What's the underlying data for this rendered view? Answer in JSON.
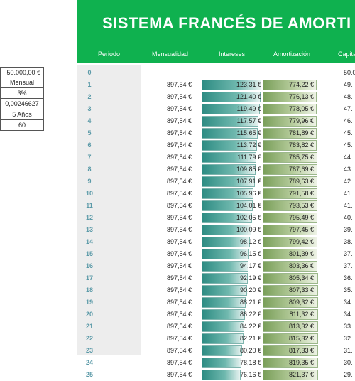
{
  "params": [
    "50.000,00 €",
    "Mensual",
    "3%",
    "0,00246627",
    "5 Años",
    "60"
  ],
  "title": "SISTEMA FRANCÉS DE AMORTI",
  "headers": {
    "periodo": "Periodo",
    "mensualidad": "Mensualidad",
    "intereses": "Intereses",
    "amortizacion": "Amortización",
    "capital": "Capita"
  },
  "rows": [
    {
      "p": "0",
      "m": "",
      "i": "",
      "a": "",
      "c": "50.0",
      "fi": 0,
      "fa": 0
    },
    {
      "p": "1",
      "m": "897,54 €",
      "i": "123,31 €",
      "a": "774,22 €",
      "c": "49.",
      "fi": 1.0,
      "fa": 0.0
    },
    {
      "p": "2",
      "m": "897,54 €",
      "i": "121,40 €",
      "a": "776,13 €",
      "c": "48.",
      "fi": 0.984,
      "fa": 0.016
    },
    {
      "p": "3",
      "m": "897,54 €",
      "i": "119,49 €",
      "a": "778,05 €",
      "c": "47.",
      "fi": 0.969,
      "fa": 0.031
    },
    {
      "p": "4",
      "m": "897,54 €",
      "i": "117,57 €",
      "a": "779,96 €",
      "c": "46.",
      "fi": 0.953,
      "fa": 0.047
    },
    {
      "p": "5",
      "m": "897,54 €",
      "i": "115,65 €",
      "a": "781,89 €",
      "c": "45.",
      "fi": 0.938,
      "fa": 0.062
    },
    {
      "p": "6",
      "m": "897,54 €",
      "i": "113,72 €",
      "a": "783,82 €",
      "c": "45.",
      "fi": 0.922,
      "fa": 0.078
    },
    {
      "p": "7",
      "m": "897,54 €",
      "i": "111,79 €",
      "a": "785,75 €",
      "c": "44.",
      "fi": 0.907,
      "fa": 0.093
    },
    {
      "p": "8",
      "m": "897,54 €",
      "i": "109,85 €",
      "a": "787,69 €",
      "c": "43.",
      "fi": 0.891,
      "fa": 0.109
    },
    {
      "p": "9",
      "m": "897,54 €",
      "i": "107,91 €",
      "a": "789,63 €",
      "c": "42.",
      "fi": 0.875,
      "fa": 0.125
    },
    {
      "p": "10",
      "m": "897,54 €",
      "i": "105,96 €",
      "a": "791,58 €",
      "c": "41.",
      "fi": 0.859,
      "fa": 0.141
    },
    {
      "p": "11",
      "m": "897,54 €",
      "i": "104,01 €",
      "a": "793,53 €",
      "c": "41.",
      "fi": 0.843,
      "fa": 0.157
    },
    {
      "p": "12",
      "m": "897,54 €",
      "i": "102,05 €",
      "a": "795,49 €",
      "c": "40.",
      "fi": 0.828,
      "fa": 0.172
    },
    {
      "p": "13",
      "m": "897,54 €",
      "i": "100,09 €",
      "a": "797,45 €",
      "c": "39.",
      "fi": 0.812,
      "fa": 0.188
    },
    {
      "p": "14",
      "m": "897,54 €",
      "i": "98,12 €",
      "a": "799,42 €",
      "c": "38.",
      "fi": 0.796,
      "fa": 0.204
    },
    {
      "p": "15",
      "m": "897,54 €",
      "i": "96,15 €",
      "a": "801,39 €",
      "c": "37.",
      "fi": 0.78,
      "fa": 0.22
    },
    {
      "p": "16",
      "m": "897,54 €",
      "i": "94,17 €",
      "a": "803,36 €",
      "c": "37.",
      "fi": 0.764,
      "fa": 0.236
    },
    {
      "p": "17",
      "m": "897,54 €",
      "i": "92,19 €",
      "a": "805,34 €",
      "c": "36.",
      "fi": 0.748,
      "fa": 0.252
    },
    {
      "p": "18",
      "m": "897,54 €",
      "i": "90,20 €",
      "a": "807,33 €",
      "c": "35.",
      "fi": 0.731,
      "fa": 0.269
    },
    {
      "p": "19",
      "m": "897,54 €",
      "i": "88,21 €",
      "a": "809,32 €",
      "c": "34.",
      "fi": 0.715,
      "fa": 0.285
    },
    {
      "p": "20",
      "m": "897,54 €",
      "i": "86,22 €",
      "a": "811,32 €",
      "c": "34.",
      "fi": 0.699,
      "fa": 0.301
    },
    {
      "p": "21",
      "m": "897,54 €",
      "i": "84,22 €",
      "a": "813,32 €",
      "c": "33.",
      "fi": 0.683,
      "fa": 0.317
    },
    {
      "p": "22",
      "m": "897,54 €",
      "i": "82,21 €",
      "a": "815,32 €",
      "c": "32.",
      "fi": 0.667,
      "fa": 0.333
    },
    {
      "p": "23",
      "m": "897,54 €",
      "i": "80,20 €",
      "a": "817,33 €",
      "c": "31.",
      "fi": 0.65,
      "fa": 0.35
    },
    {
      "p": "24",
      "m": "897,54 €",
      "i": "78,18 €",
      "a": "819,35 €",
      "c": "30.",
      "fi": 0.634,
      "fa": 0.366
    },
    {
      "p": "25",
      "m": "897,54 €",
      "i": "76,16 €",
      "a": "821,37 €",
      "c": "29.",
      "fi": 0.618,
      "fa": 0.382
    }
  ]
}
